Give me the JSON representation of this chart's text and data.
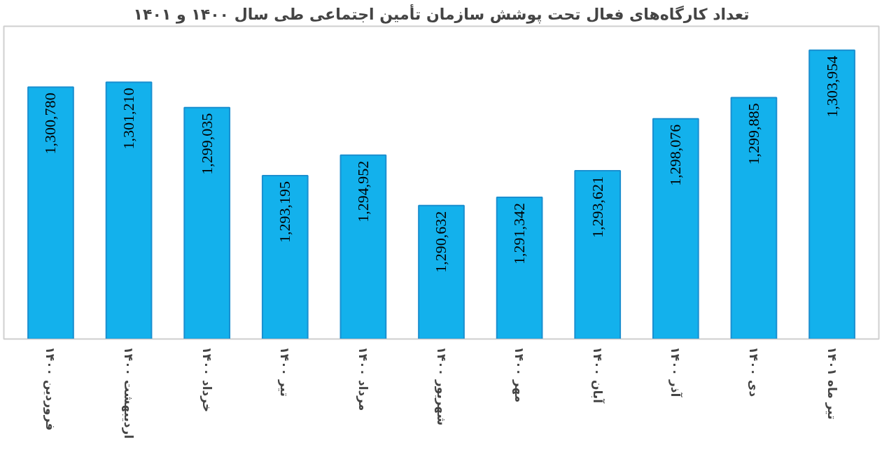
{
  "chart_data": {
    "type": "bar",
    "title": "تعداد کارگاه‌های فعال تحت پوشش سازمان تأمین اجتماعی طی سال ۱۴۰۰ و ۱۴۰۱",
    "categories": [
      "فروردین ۱۴۰۰",
      "اردیبهشت ۱۴۰۰",
      "خرداد ۱۴۰۰",
      "تیر ۱۴۰۰",
      "مرداد ۱۴۰۰",
      "شهریور ۱۴۰۰",
      "مهر ۱۴۰۰",
      "آبان ۱۴۰۰",
      "آذر ۱۴۰۰",
      "دی ۱۴۰۰",
      "تیر ماه ۱۴۰۱"
    ],
    "values": [
      1300780,
      1301210,
      1299035,
      1293195,
      1294952,
      1290632,
      1291342,
      1293621,
      1298076,
      1299885,
      1303954
    ],
    "value_labels": [
      "1,300,780",
      "1,301,210",
      "1,299,035",
      "1,293,195",
      "1,294,952",
      "1,290,632",
      "1,291,342",
      "1,293,621",
      "1,298,076",
      "1,299,885",
      "1,303,954"
    ],
    "color": "#13b1ec",
    "ylim": [
      1279200,
      1306000
    ],
    "tick_labels": "x",
    "grid": false
  }
}
